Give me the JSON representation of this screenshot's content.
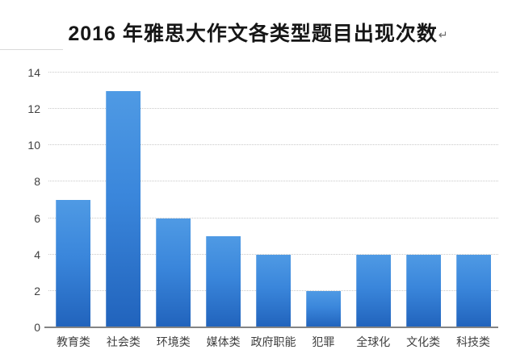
{
  "page": {
    "title": "2016 年雅思大作文各类型题目出现次数",
    "paragraph_mark": "↵"
  },
  "chart_data": {
    "type": "bar",
    "title": "2016 年雅思大作文各类型题目出现次数",
    "categories": [
      "教育类",
      "社会类",
      "环境类",
      "媒体类",
      "政府职能",
      "犯罪",
      "全球化",
      "文化类",
      "科技类"
    ],
    "values": [
      7,
      13,
      6,
      5,
      4,
      2,
      4,
      4,
      4
    ],
    "xlabel": "",
    "ylabel": "",
    "ylim": [
      0,
      14
    ],
    "yticks": [
      0,
      2,
      4,
      6,
      8,
      10,
      12,
      14
    ],
    "grid": "horizontal-dotted",
    "legend": "none",
    "colors": {
      "bar_top": "#4f9ae4",
      "bar_mid": "#3a86db",
      "bar_bottom": "#2163bc",
      "axis_line": "#848484",
      "gridline": "#c9c9c9",
      "tick_label": "#3f3f3f",
      "title_text": "#161616"
    }
  }
}
